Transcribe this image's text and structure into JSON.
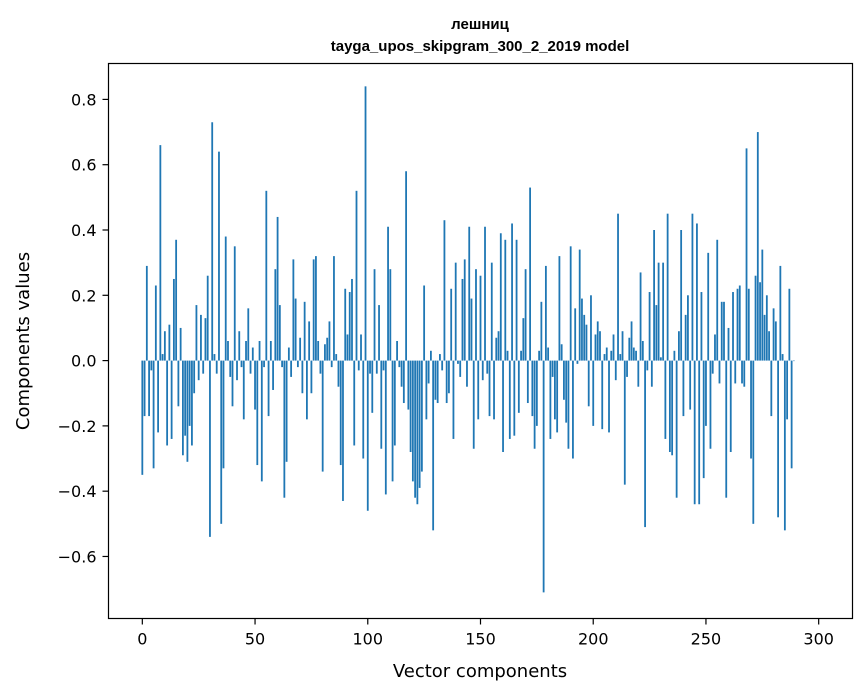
{
  "chart_data": {
    "type": "bar",
    "title": "лешниц",
    "subtitle": "tayga_upos_skipgram_300_2_2019 model",
    "xlabel": "Vector components",
    "ylabel": "Components values",
    "xlim": [
      -15,
      315
    ],
    "ylim": [
      -0.79,
      0.91
    ],
    "xticks": [
      0,
      50,
      100,
      150,
      200,
      250,
      300
    ],
    "yticks": [
      -0.6,
      -0.4,
      -0.2,
      0.0,
      0.2,
      0.4,
      0.6,
      0.8
    ],
    "xtick_labels": [
      "0",
      "50",
      "100",
      "150",
      "200",
      "250",
      "300"
    ],
    "ytick_labels": [
      "−0.6",
      "−0.4",
      "−0.2",
      "0.0",
      "0.2",
      "0.4",
      "0.6",
      "0.8"
    ],
    "grid": false,
    "bar_color": "#1f77b4",
    "series": [
      {
        "values": [
          -0.35,
          -0.17,
          0.29,
          -0.17,
          -0.03,
          -0.33,
          0.23,
          -0.22,
          0.66,
          0.02,
          0.09,
          -0.26,
          0.11,
          -0.24,
          0.25,
          0.37,
          -0.14,
          0.1,
          -0.29,
          -0.23,
          -0.31,
          -0.2,
          -0.26,
          -0.1,
          0.17,
          -0.06,
          0.14,
          -0.04,
          0.13,
          0.26,
          -0.54,
          0.73,
          0.02,
          -0.04,
          0.64,
          -0.5,
          -0.33,
          0.38,
          0.06,
          -0.05,
          -0.14,
          0.35,
          -0.06,
          0.09,
          -0.02,
          -0.18,
          0.06,
          0.16,
          -0.04,
          0.04,
          -0.15,
          -0.32,
          0.06,
          -0.37,
          -0.02,
          0.52,
          -0.17,
          0.06,
          -0.09,
          0.28,
          0.44,
          0.17,
          -0.02,
          -0.42,
          -0.31,
          0.04,
          -0.05,
          0.31,
          0.19,
          -0.02,
          0.07,
          -0.1,
          0.18,
          -0.18,
          0.12,
          -0.1,
          0.31,
          0.32,
          0.06,
          -0.04,
          -0.34,
          0.05,
          0.07,
          0.12,
          -0.02,
          0.32,
          0.02,
          -0.08,
          -0.32,
          -0.43,
          0.22,
          0.08,
          0.21,
          0.25,
          -0.26,
          0.52,
          -0.03,
          0.08,
          -0.3,
          0.84,
          -0.46,
          -0.04,
          -0.16,
          0.28,
          -0.04,
          0.17,
          -0.27,
          -0.03,
          -0.41,
          0.41,
          0.28,
          -0.37,
          -0.26,
          0.06,
          -0.02,
          -0.08,
          -0.13,
          0.58,
          -0.15,
          -0.28,
          -0.37,
          -0.42,
          -0.44,
          -0.39,
          -0.34,
          0.23,
          -0.18,
          -0.07,
          0.03,
          -0.52,
          -0.12,
          -0.13,
          0.02,
          -0.03,
          0.43,
          -0.13,
          -0.1,
          0.22,
          -0.24,
          0.3,
          -0.01,
          -0.05,
          0.25,
          0.31,
          -0.08,
          0.41,
          0.19,
          -0.27,
          0.28,
          -0.18,
          0.26,
          -0.06,
          0.41,
          -0.04,
          -0.17,
          0.3,
          -0.18,
          0.07,
          0.09,
          0.39,
          -0.28,
          0.37,
          0.03,
          -0.24,
          0.42,
          -0.23,
          0.37,
          -0.16,
          0.03,
          0.13,
          0.28,
          -0.13,
          0.53,
          -0.17,
          -0.27,
          -0.2,
          0.03,
          0.18,
          -0.71,
          0.29,
          0.04,
          -0.24,
          -0.05,
          -0.18,
          -0.22,
          0.32,
          0.05,
          -0.12,
          -0.19,
          -0.27,
          0.35,
          -0.3,
          0.16,
          -0.01,
          0.34,
          0.19,
          0.14,
          0.11,
          -0.14,
          0.2,
          -0.2,
          0.08,
          0.12,
          0.09,
          -0.21,
          0.02,
          0.04,
          -0.22,
          0.03,
          0.08,
          -0.06,
          0.45,
          0.02,
          0.09,
          -0.38,
          -0.05,
          0.07,
          0.12,
          0.04,
          0.03,
          -0.08,
          0.27,
          0.06,
          -0.51,
          -0.03,
          0.21,
          -0.08,
          0.4,
          0.17,
          0.3,
          0.01,
          0.3,
          -0.24,
          0.45,
          -0.28,
          -0.29,
          0.03,
          -0.42,
          0.09,
          0.4,
          -0.17,
          0.14,
          0.2,
          -0.15,
          0.45,
          -0.44,
          0.42,
          -0.44,
          0.21,
          -0.36,
          -0.2,
          0.33,
          -0.27,
          -0.04,
          0.08,
          0.37,
          -0.07,
          0.18,
          0.18,
          -0.42,
          0.1,
          -0.28,
          0.21,
          -0.07,
          0.22,
          0.23,
          -0.07,
          -0.08,
          0.65,
          0.22,
          -0.3,
          -0.5,
          0.26,
          0.7,
          0.24,
          0.34,
          0.14,
          0.2,
          0.09,
          -0.17,
          0.16,
          0.12,
          -0.48,
          0.29,
          0.02,
          -0.52,
          -0.18,
          0.22,
          -0.33,
          0.0
        ]
      }
    ]
  }
}
